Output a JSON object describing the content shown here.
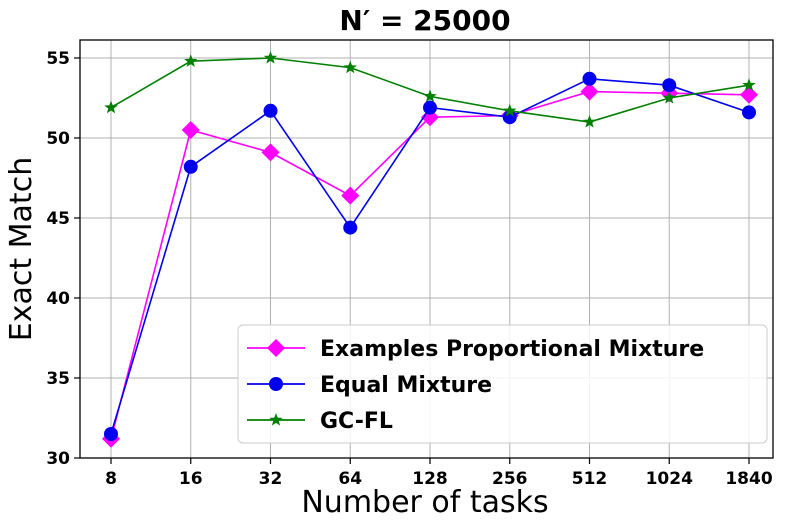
{
  "chart_data": {
    "type": "line",
    "title": "N′ = 25000",
    "xlabel": "Number of tasks",
    "ylabel": "Exact Match",
    "categories": [
      "8",
      "16",
      "32",
      "64",
      "128",
      "256",
      "512",
      "1024",
      "1840"
    ],
    "ylim": [
      30,
      56
    ],
    "yticks": [
      30,
      35,
      40,
      45,
      50,
      55
    ],
    "grid": true,
    "legend_position": "lower-right",
    "series": [
      {
        "name": "Examples Proportional Mixture",
        "color": "#ff00ff",
        "marker": "diamond",
        "values": [
          31.2,
          50.5,
          49.1,
          46.4,
          51.3,
          51.4,
          52.9,
          52.8,
          52.7
        ]
      },
      {
        "name": "Equal Mixture",
        "color": "#0000ee",
        "marker": "circle",
        "values": [
          31.5,
          48.2,
          51.7,
          44.4,
          51.9,
          51.3,
          53.7,
          53.3,
          51.6
        ]
      },
      {
        "name": "GC-FL",
        "color": "#008000",
        "marker": "star",
        "values": [
          51.9,
          54.8,
          55.0,
          54.4,
          52.6,
          51.7,
          51.0,
          52.5,
          53.3
        ]
      }
    ]
  }
}
